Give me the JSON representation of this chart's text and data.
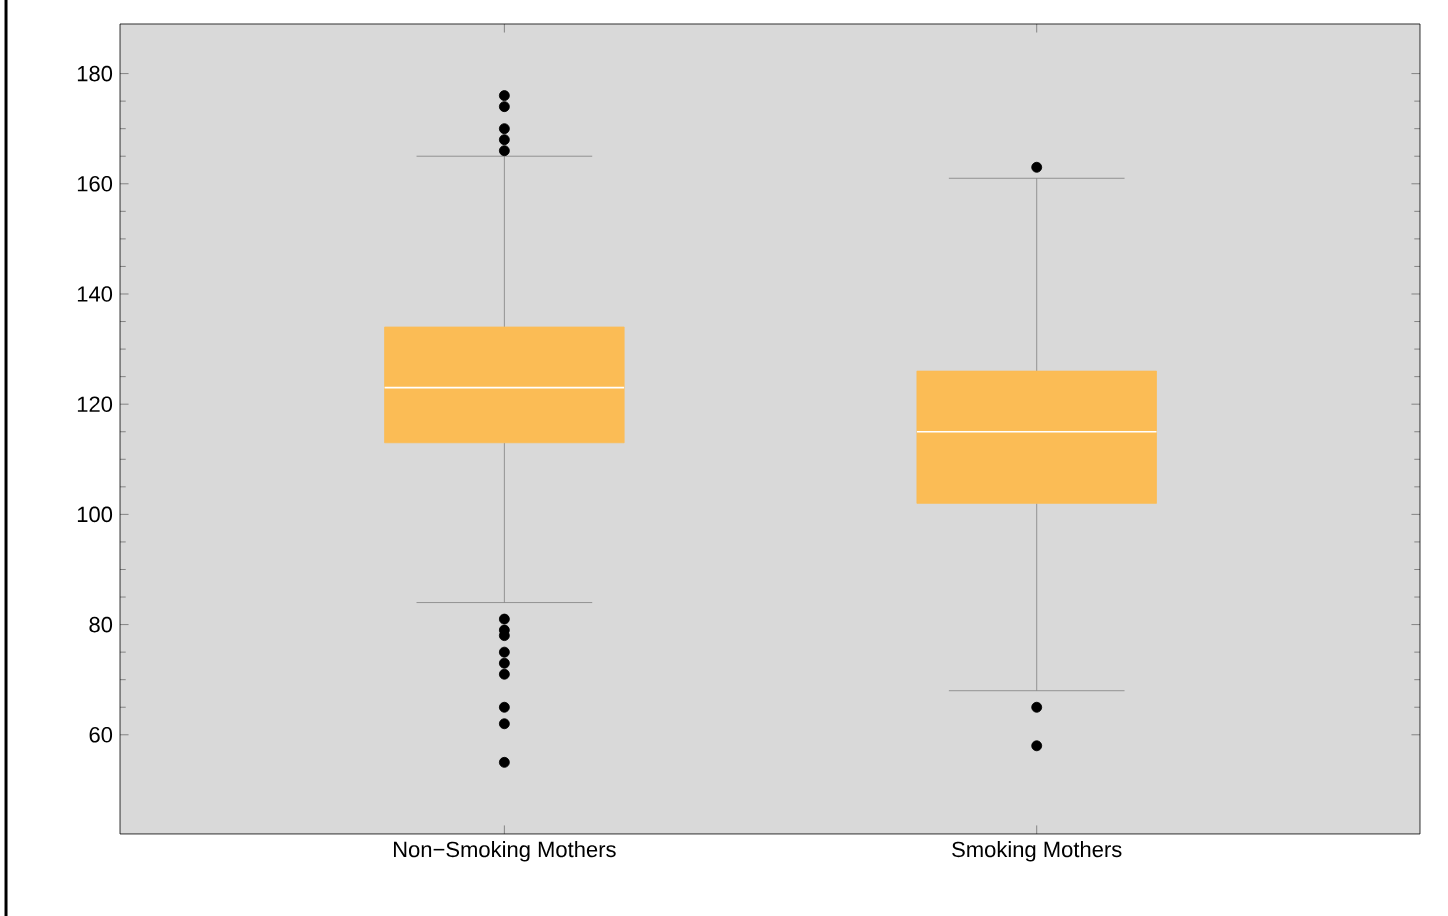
{
  "chart_data": {
    "type": "box",
    "categories": [
      "Non−Smoking Mothers",
      "Smoking Mothers"
    ],
    "boxes": [
      {
        "low": 84,
        "q1": 113,
        "median": 123,
        "q3": 134,
        "high": 165,
        "outliers": [
          176,
          174,
          170,
          168,
          166,
          81,
          79,
          78,
          75,
          73,
          71,
          65,
          62,
          55
        ]
      },
      {
        "low": 68,
        "q1": 102,
        "median": 115,
        "q3": 126,
        "high": 161,
        "outliers": [
          163,
          65,
          58
        ]
      }
    ],
    "color": "#fbbc55",
    "ylim": [
      42,
      189
    ],
    "yticks": [
      60,
      80,
      100,
      120,
      140,
      160,
      180
    ],
    "grid": false
  }
}
